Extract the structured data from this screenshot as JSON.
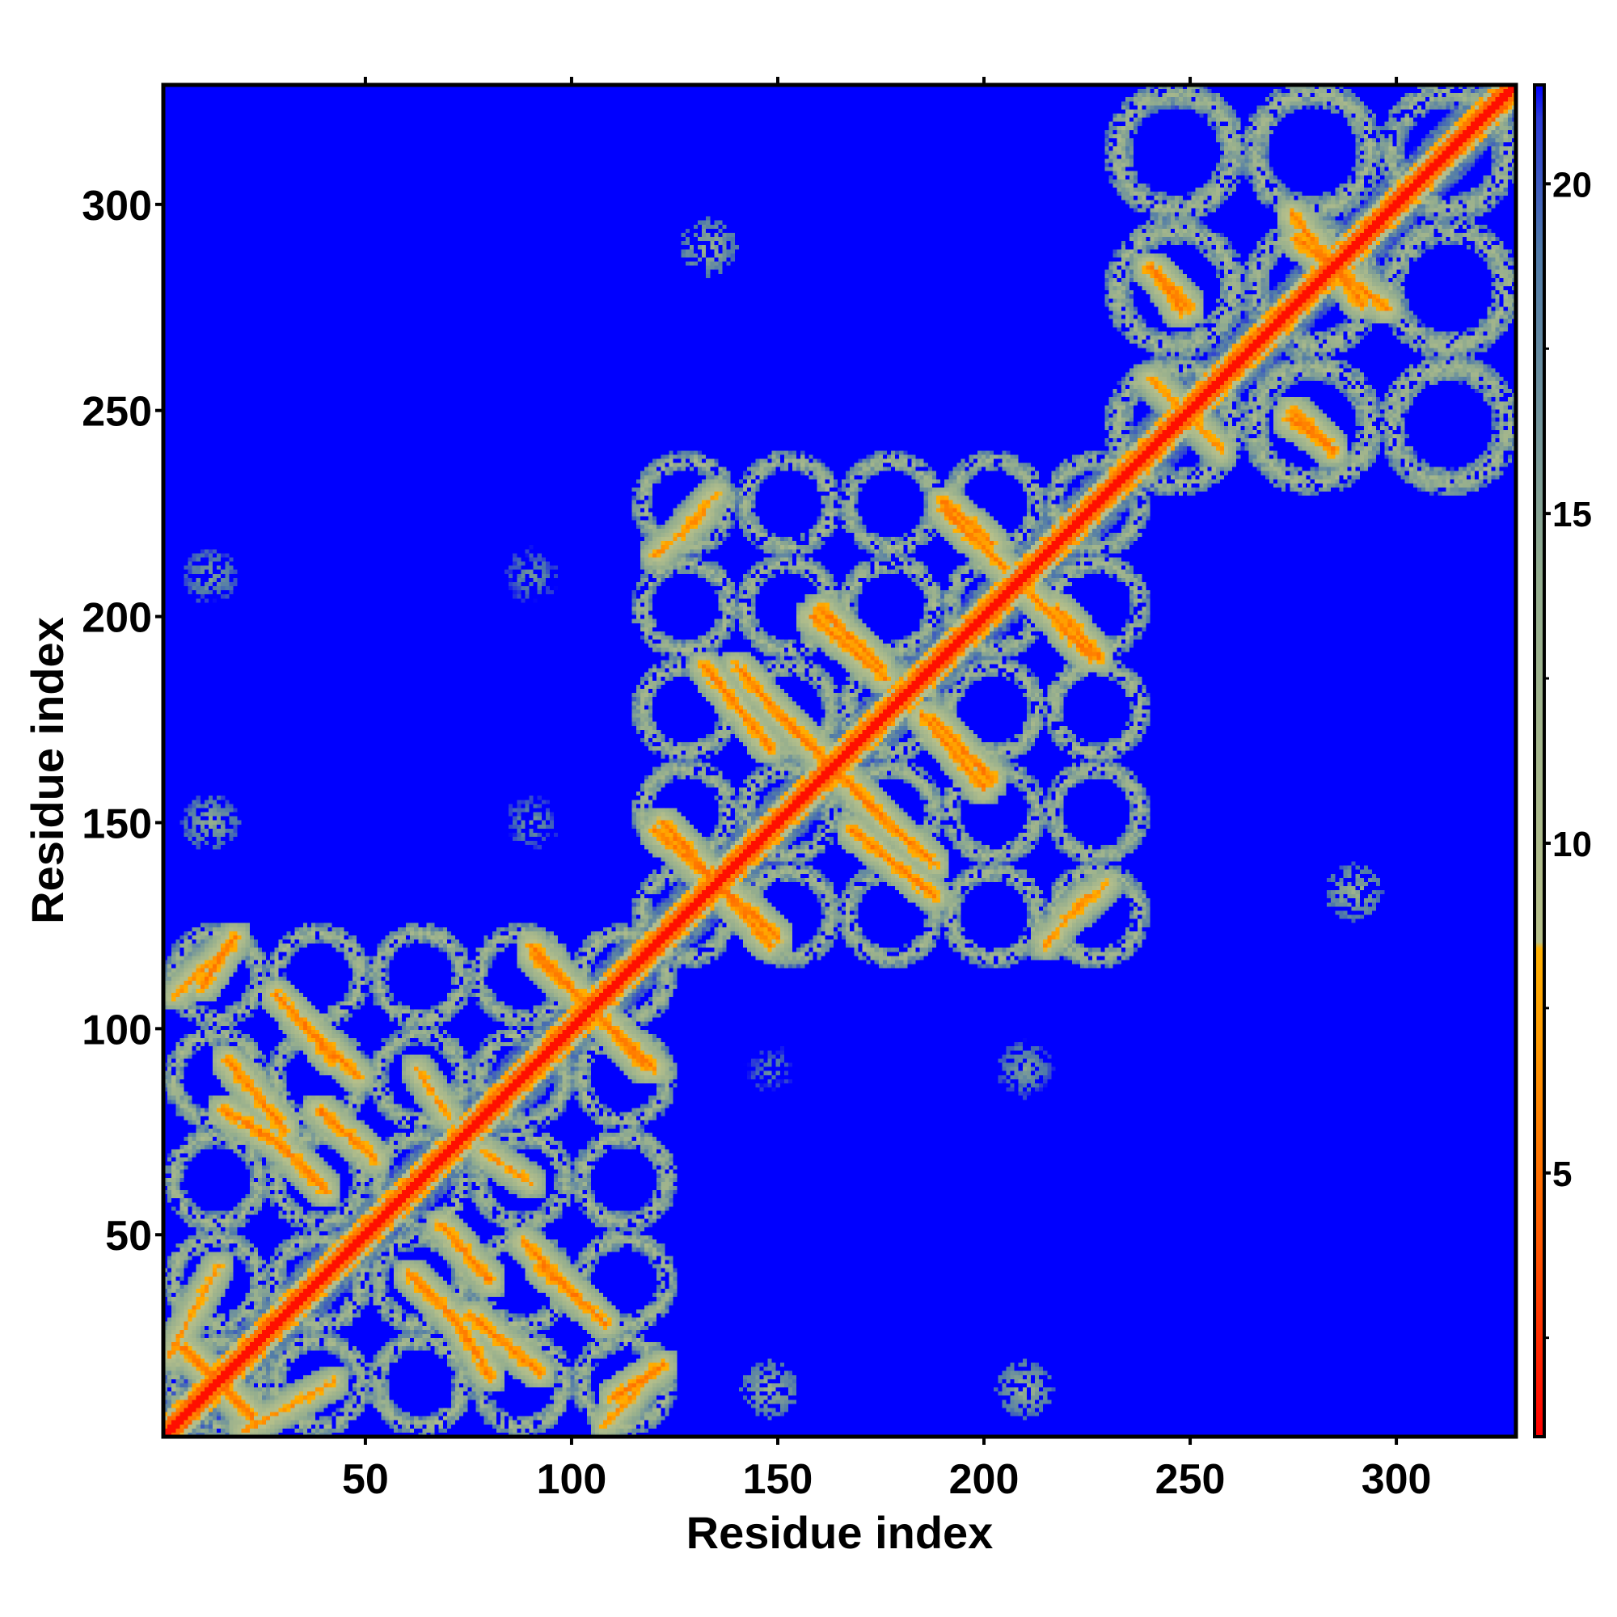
{
  "chart_data": {
    "type": "heatmap",
    "title": "",
    "xlabel": "Residue index",
    "ylabel": "Residue index",
    "xlim": [
      1,
      329
    ],
    "ylim": [
      1,
      329
    ],
    "x_ticks": [
      50,
      100,
      150,
      200,
      250,
      300
    ],
    "y_ticks": [
      50,
      100,
      150,
      200,
      250,
      300
    ],
    "colorbar": {
      "range": [
        1,
        21.5
      ],
      "ticks": [
        5,
        10,
        15,
        20
      ],
      "stops": [
        {
          "value": 1,
          "color": "#ff0000"
        },
        {
          "value": 4,
          "color": "#ff5a00"
        },
        {
          "value": 7,
          "color": "#ff9a00"
        },
        {
          "value": 8.4,
          "color": "#ffb000"
        },
        {
          "value": 8.5,
          "color": "#b7c08a"
        },
        {
          "value": 14,
          "color": "#93ad8e"
        },
        {
          "value": 19,
          "color": "#4f7aa9"
        },
        {
          "value": 21,
          "color": "#2b3bd8"
        },
        {
          "value": 21.5,
          "color": "#0000ff"
        }
      ]
    },
    "background_color": "#0000ff",
    "matrix_description": "distance map; low values along diagonal (residue i to i), contact blocks for two domains (1-125, 125-235) and C-terminal region (240-329)",
    "diagonal_value": 1,
    "contact_segments": [
      {
        "x": [
          5,
          22
        ],
        "y": [
          22,
          5
        ],
        "value": 5
      },
      {
        "x": [
          20,
          42
        ],
        "y": [
          2,
          14
        ],
        "value": 6
      },
      {
        "x": [
          60,
          72
        ],
        "y": [
          40,
          28
        ],
        "value": 5
      },
      {
        "x": [
          75,
          92
        ],
        "y": [
          30,
          16
        ],
        "value": 5
      },
      {
        "x": [
          92,
          108
        ],
        "y": [
          42,
          28
        ],
        "value": 5
      },
      {
        "x": [
          110,
          122
        ],
        "y": [
          10,
          18
        ],
        "value": 5
      },
      {
        "x": [
          35,
          48
        ],
        "y": [
          100,
          88
        ],
        "value": 5
      },
      {
        "x": [
          38,
          52
        ],
        "y": [
          80,
          68
        ],
        "value": 5
      },
      {
        "x": [
          15,
          28
        ],
        "y": [
          80,
          72
        ],
        "value": 5
      },
      {
        "x": [
          3,
          18
        ],
        "y": [
          108,
          122
        ],
        "value": 6
      },
      {
        "x": [
          90,
          120
        ],
        "y": [
          118,
          90
        ],
        "value": 5
      },
      {
        "x": [
          78,
          90
        ],
        "y": [
          70,
          62
        ],
        "value": 6
      },
      {
        "x": [
          120,
          150
        ],
        "y": [
          148,
          122
        ],
        "value": 5
      },
      {
        "x": [
          140,
          150
        ],
        "y": [
          188,
          176
        ],
        "value": 5
      },
      {
        "x": [
          150,
          175
        ],
        "y": [
          176,
          152
        ],
        "value": 5
      },
      {
        "x": [
          168,
          188
        ],
        "y": [
          148,
          132
        ],
        "value": 5
      },
      {
        "x": [
          185,
          200
        ],
        "y": [
          176,
          158
        ],
        "value": 5
      },
      {
        "x": [
          160,
          175
        ],
        "y": [
          202,
          188
        ],
        "value": 5
      },
      {
        "x": [
          190,
          205
        ],
        "y": [
          226,
          212
        ],
        "value": 5
      },
      {
        "x": [
          218,
          228
        ],
        "y": [
          202,
          190
        ],
        "value": 5
      },
      {
        "x": [
          128,
          135
        ],
        "y": [
          222,
          230
        ],
        "value": 6
      },
      {
        "x": [
          215,
          225
        ],
        "y": [
          120,
          132
        ],
        "value": 6
      },
      {
        "x": [
          275,
          292
        ],
        "y": [
          298,
          276
        ],
        "value": 5
      },
      {
        "x": [
          242,
          248
        ],
        "y": [
          284,
          274
        ],
        "value": 5
      },
      {
        "x": [
          275,
          285
        ],
        "y": [
          250,
          240
        ],
        "value": 5
      },
      {
        "x": [
          240,
          250
        ],
        "y": [
          258,
          248
        ],
        "value": 6
      }
    ],
    "contact_blocks": [
      {
        "x": [
          1,
          125
        ],
        "y": [
          1,
          125
        ],
        "rings": 5
      },
      {
        "x": [
          115,
          240
        ],
        "y": [
          115,
          240
        ],
        "rings": 5
      },
      {
        "x": [
          230,
          330
        ],
        "y": [
          230,
          330
        ],
        "rings": 3
      }
    ],
    "isolated_patches": [
      {
        "x": 12,
        "y": 210,
        "value": 14
      },
      {
        "x": 90,
        "y": 210,
        "value": 15
      },
      {
        "x": 133,
        "y": 290,
        "value": 12
      },
      {
        "x": 12,
        "y": 150,
        "value": 13
      },
      {
        "x": 90,
        "y": 150,
        "value": 15
      },
      {
        "x": 148,
        "y": 90,
        "value": 16
      },
      {
        "x": 148,
        "y": 12,
        "value": 12
      },
      {
        "x": 210,
        "y": 90,
        "value": 14
      },
      {
        "x": 210,
        "y": 12,
        "value": 12
      },
      {
        "x": 290,
        "y": 133,
        "value": 12
      }
    ]
  }
}
